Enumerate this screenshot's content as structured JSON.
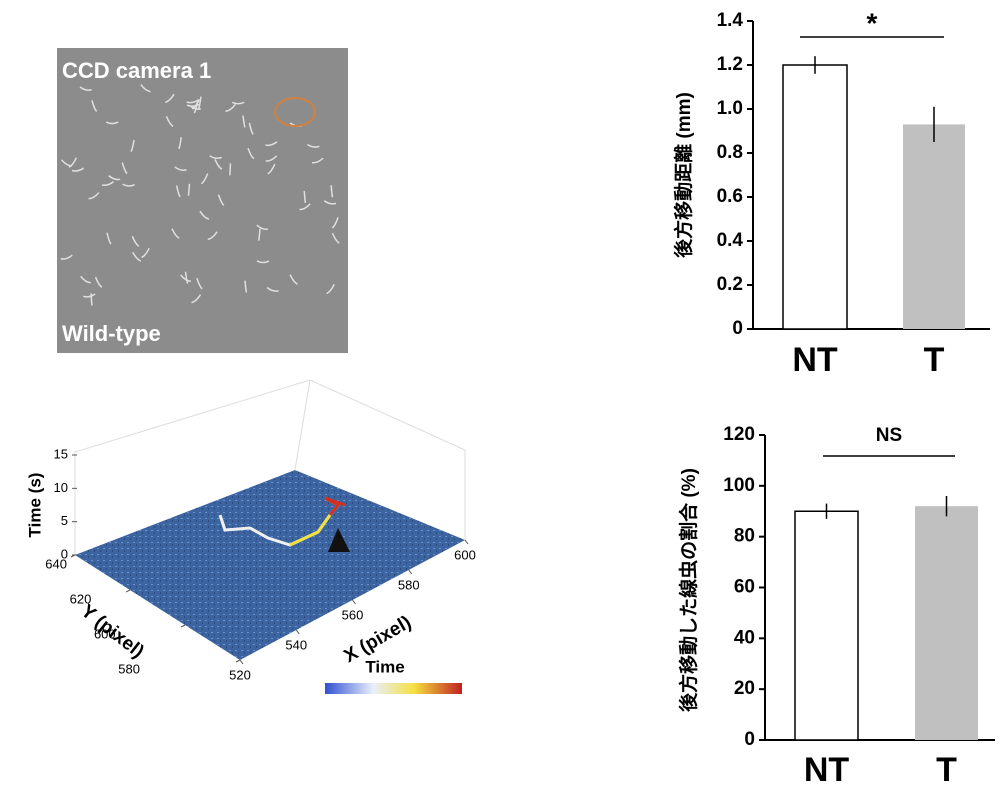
{
  "image": {
    "top_label": "CCD camera 1",
    "bottom_label": "Wild-type"
  },
  "chart_data": [
    {
      "type": "bar",
      "ylabel": "後方移動距離 (mm)",
      "categories": [
        "NT",
        "T"
      ],
      "values": [
        1.2,
        0.93
      ],
      "errors": [
        0.04,
        0.08
      ],
      "colors": [
        "#ffffff",
        "#c0c0c0"
      ],
      "ylim": [
        0,
        1.4
      ],
      "yticks": [
        0,
        0.2,
        0.4,
        0.6,
        0.8,
        {
          "value": 1,
          "label": "1.0"
        },
        1.2,
        1.4
      ],
      "annotation": "*"
    },
    {
      "type": "bar",
      "ylabel": "後方移動した線虫の割合 (%)",
      "categories": [
        "NT",
        "T"
      ],
      "values": [
        90,
        92
      ],
      "errors": [
        3,
        4
      ],
      "colors": [
        "#ffffff",
        "#c0c0c0"
      ],
      "ylim": [
        0,
        120
      ],
      "yticks": [
        0,
        20,
        40,
        60,
        80,
        100,
        120
      ],
      "annotation": "NS"
    },
    {
      "type": "trajectory3d",
      "zlabel": "Time (s)",
      "ylabel": "Y (pixel)",
      "xlabel": "X (pixel)",
      "colorbar_label": "Time",
      "zlim": [
        0,
        15
      ],
      "zticks": [
        0,
        5,
        10,
        15
      ],
      "ylim": [
        580,
        640
      ],
      "yticks": [
        580,
        600,
        620,
        640
      ],
      "xlim": [
        520,
        600
      ],
      "xticks": [
        520,
        540,
        560,
        580,
        600
      ]
    }
  ]
}
